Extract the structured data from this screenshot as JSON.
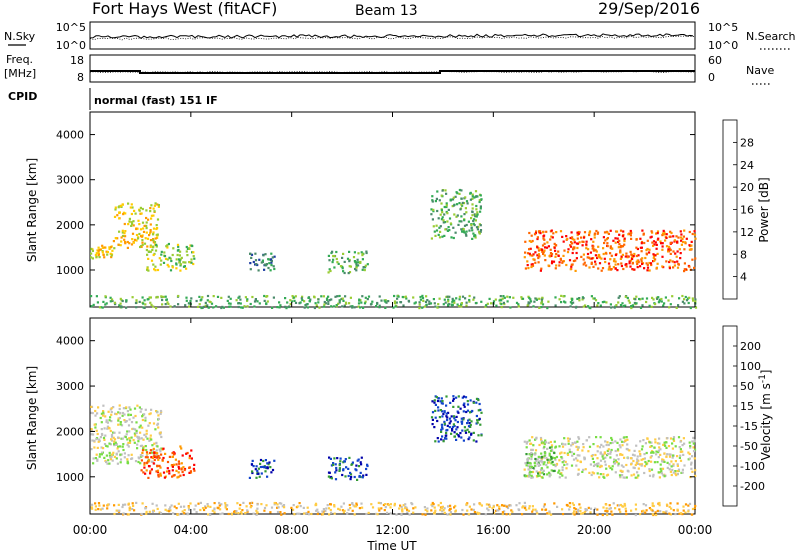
{
  "header": {
    "station": "Fort Hays West (fitACF)",
    "beam": "Beam 13",
    "date": "29/Sep/2016"
  },
  "colors": {
    "trace": "#000000",
    "ground_scatter": "#c0c0c0",
    "power_scale": [
      "#0000ff",
      "#1a3aa0",
      "#4a8a6a",
      "#33aa55",
      "#99cc33",
      "#ffcc00",
      "#ff9900",
      "#ff6600",
      "#ff0000"
    ],
    "velocity_scale": [
      "#ff0000",
      "#ff5500",
      "#ff9900",
      "#ffcc44",
      "#c0c0c0",
      "#77dd44",
      "#339933",
      "#1144cc",
      "#0000aa"
    ]
  },
  "noise_panel": {
    "left_label": "N.Sky",
    "right_label": "N.Search",
    "left_ticks": [
      "10^5",
      "10^0"
    ],
    "right_ticks": [
      "10^5",
      "10^0"
    ]
  },
  "freq_panel": {
    "left_label_line1": "Freq.",
    "left_label_line2": "[MHz]",
    "right_label": "Nave",
    "left_ticks": [
      "18",
      "8"
    ],
    "right_ticks": [
      "60",
      "0"
    ]
  },
  "cpid": {
    "label": "CPID",
    "value": "normal (fast) 151 IF"
  },
  "chart_data": [
    {
      "type": "heatmap",
      "name": "power",
      "ylabel": "Slant Range [km]",
      "xlabel": "",
      "yticks": [
        "4000",
        "3000",
        "2000",
        "1000"
      ],
      "ylim": [
        180,
        4500
      ],
      "xlim": [
        0,
        24
      ],
      "colorbar": {
        "label": "Power [dB]",
        "ticks": [
          "28",
          "24",
          "20",
          "16",
          "12",
          "8",
          "4"
        ],
        "range": [
          0,
          32
        ]
      },
      "regions": [
        {
          "t0": 0.0,
          "t1": 0.9,
          "r0": 1280,
          "r1": 1560,
          "level": 5
        },
        {
          "t0": 0.9,
          "t1": 2.7,
          "r0": 1500,
          "r1": 2500,
          "level": 5
        },
        {
          "t0": 2.2,
          "t1": 4.1,
          "r0": 1000,
          "r1": 1600,
          "level": 4
        },
        {
          "t0": 6.3,
          "t1": 7.3,
          "r0": 1000,
          "r1": 1400,
          "level": 2
        },
        {
          "t0": 9.4,
          "t1": 11.0,
          "r0": 950,
          "r1": 1450,
          "level": 3
        },
        {
          "t0": 13.5,
          "t1": 15.5,
          "r0": 1700,
          "r1": 2800,
          "level": 3
        },
        {
          "t0": 17.2,
          "t1": 24.0,
          "r0": 1000,
          "r1": 1900,
          "level": 7
        },
        {
          "t0": 0.0,
          "t1": 24.0,
          "r0": 180,
          "r1": 450,
          "level": 3
        }
      ]
    },
    {
      "type": "heatmap",
      "name": "velocity",
      "ylabel": "Slant Range [km]",
      "xlabel": "Time UT",
      "xticks": [
        "00:00",
        "04:00",
        "08:00",
        "12:00",
        "16:00",
        "20:00",
        "00:00"
      ],
      "yticks": [
        "4000",
        "3000",
        "2000",
        "1000"
      ],
      "ylim": [
        180,
        4500
      ],
      "xlim": [
        0,
        24
      ],
      "colorbar": {
        "label": "Velocity [m s^-1]",
        "ticks": [
          "200",
          "100",
          "50",
          "15",
          "-15",
          "-50",
          "-100",
          "-200"
        ],
        "range": [
          -250,
          250
        ]
      },
      "regions": [
        {
          "t0": 0.0,
          "t1": 2.8,
          "r0": 1300,
          "r1": 2600,
          "level": 4
        },
        {
          "t0": 2.0,
          "t1": 4.1,
          "r0": 1000,
          "r1": 1700,
          "level": 1
        },
        {
          "t0": 6.3,
          "t1": 7.3,
          "r0": 1000,
          "r1": 1400,
          "level": 7
        },
        {
          "t0": 9.4,
          "t1": 11.0,
          "r0": 950,
          "r1": 1450,
          "level": 7
        },
        {
          "t0": 13.5,
          "t1": 15.5,
          "r0": 1800,
          "r1": 2800,
          "level": 7
        },
        {
          "t0": 17.2,
          "t1": 24.0,
          "r0": 1000,
          "r1": 1900,
          "level": 4
        },
        {
          "t0": 17.2,
          "t1": 18.4,
          "r0": 1000,
          "r1": 1700,
          "level": 5
        },
        {
          "t0": 0.0,
          "t1": 24.0,
          "r0": 180,
          "r1": 450,
          "level": 3
        }
      ]
    }
  ]
}
